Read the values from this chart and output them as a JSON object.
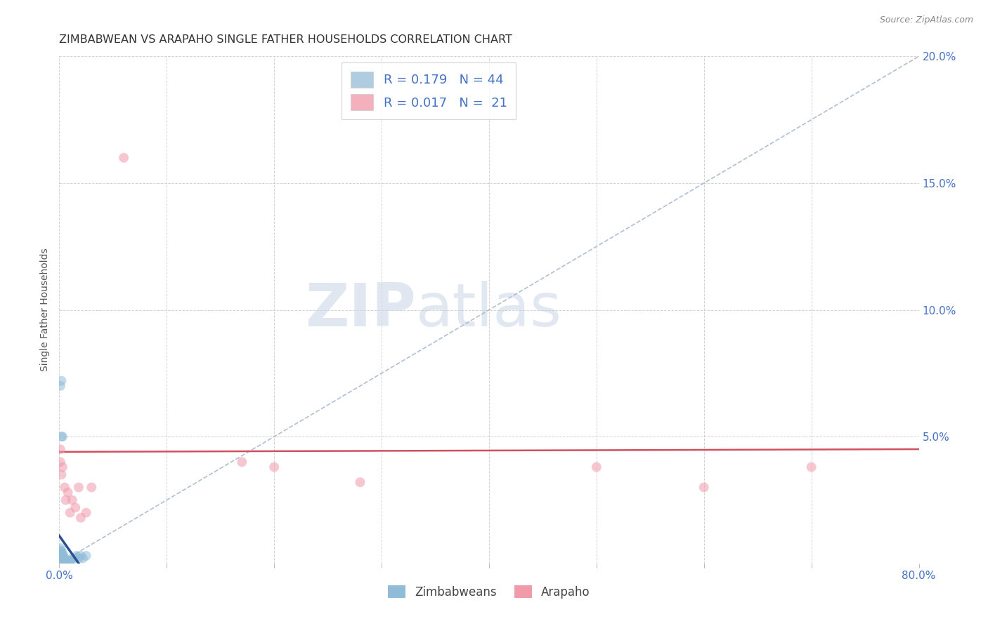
{
  "title": "ZIMBABWEAN VS ARAPAHO SINGLE FATHER HOUSEHOLDS CORRELATION CHART",
  "source": "Source: ZipAtlas.com",
  "ylabel": "Single Father Households",
  "xlim": [
    0.0,
    0.8
  ],
  "ylim": [
    0.0,
    0.2
  ],
  "xticks": [
    0.0,
    0.1,
    0.2,
    0.3,
    0.4,
    0.5,
    0.6,
    0.7,
    0.8
  ],
  "xticklabels": [
    "0.0%",
    "",
    "",
    "",
    "",
    "",
    "",
    "",
    "80.0%"
  ],
  "yticks": [
    0.0,
    0.05,
    0.1,
    0.15,
    0.2
  ],
  "yticklabels_right": [
    "",
    "5.0%",
    "10.0%",
    "15.0%",
    "20.0%"
  ],
  "watermark_zip": "ZIP",
  "watermark_atlas": "atlas",
  "zim_color": "#90bcd8",
  "ara_color": "#f09aaa",
  "zim_alpha": 0.55,
  "ara_alpha": 0.55,
  "grid_color": "#c8c8c8",
  "diag_color": "#a8b8cc",
  "zim_line_color": "#2a5090",
  "ara_line_color": "#d05060",
  "background_color": "#ffffff",
  "title_fontsize": 11.5,
  "axis_label_fontsize": 10,
  "tick_fontsize": 11,
  "right_tick_color": "#4472c4",
  "bottom_tick_color": "#4472c4",
  "dot_size": 100,
  "zim_x": [
    0.001,
    0.001,
    0.001,
    0.001,
    0.001,
    0.001,
    0.001,
    0.002,
    0.002,
    0.002,
    0.002,
    0.002,
    0.002,
    0.003,
    0.003,
    0.003,
    0.003,
    0.003,
    0.004,
    0.004,
    0.004,
    0.004,
    0.005,
    0.005,
    0.005,
    0.006,
    0.006,
    0.007,
    0.007,
    0.008,
    0.009,
    0.01,
    0.011,
    0.012,
    0.014,
    0.016,
    0.018,
    0.02,
    0.022,
    0.025,
    0.002,
    0.003,
    0.001,
    0.002
  ],
  "zim_y": [
    0.0,
    0.001,
    0.002,
    0.003,
    0.004,
    0.005,
    0.006,
    0.0,
    0.001,
    0.002,
    0.003,
    0.004,
    0.005,
    0.0,
    0.001,
    0.002,
    0.003,
    0.004,
    0.0,
    0.001,
    0.002,
    0.003,
    0.0,
    0.001,
    0.002,
    0.0,
    0.001,
    0.0,
    0.001,
    0.001,
    0.001,
    0.001,
    0.001,
    0.002,
    0.002,
    0.003,
    0.002,
    0.003,
    0.002,
    0.003,
    0.072,
    0.05,
    0.07,
    0.05
  ],
  "ara_x": [
    0.001,
    0.001,
    0.002,
    0.003,
    0.005,
    0.006,
    0.008,
    0.01,
    0.012,
    0.015,
    0.018,
    0.02,
    0.025,
    0.03,
    0.06,
    0.17,
    0.2,
    0.28,
    0.5,
    0.6,
    0.7
  ],
  "ara_y": [
    0.04,
    0.045,
    0.035,
    0.038,
    0.03,
    0.025,
    0.028,
    0.02,
    0.025,
    0.022,
    0.03,
    0.018,
    0.02,
    0.03,
    0.16,
    0.04,
    0.038,
    0.032,
    0.038,
    0.03,
    0.038
  ],
  "legend1_label": "R = 0.179   N = 44",
  "legend2_label": "R = 0.017   N =  21",
  "legend1_color": "#b0cce0",
  "legend2_color": "#f4b0bc"
}
